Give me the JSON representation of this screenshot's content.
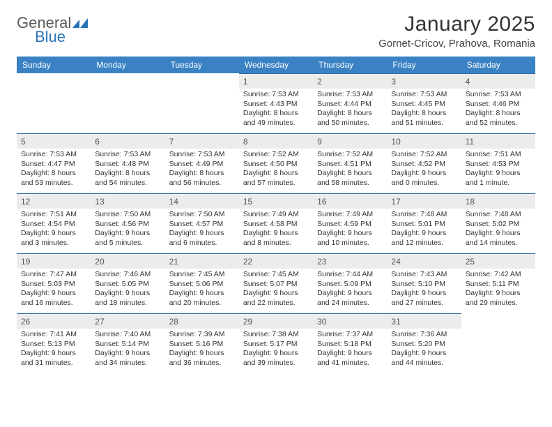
{
  "brand": {
    "word1": "General",
    "word2": "Blue",
    "mark_color": "#2a73b8",
    "text_color": "#5a5a5a"
  },
  "title": "January 2025",
  "location": "Gornet-Cricov, Prahova, Romania",
  "colors": {
    "header_bg": "#3a82c4",
    "header_text": "#ffffff",
    "daynum_bg": "#ececec",
    "daynum_border": "#2f6aa5",
    "text": "#333333"
  },
  "day_headers": [
    "Sunday",
    "Monday",
    "Tuesday",
    "Wednesday",
    "Thursday",
    "Friday",
    "Saturday"
  ],
  "weeks": [
    [
      {
        "n": "",
        "empty": true
      },
      {
        "n": "",
        "empty": true
      },
      {
        "n": "",
        "empty": true
      },
      {
        "n": "1",
        "sr": "Sunrise: 7:53 AM",
        "ss": "Sunset: 4:43 PM",
        "d1": "Daylight: 8 hours",
        "d2": "and 49 minutes."
      },
      {
        "n": "2",
        "sr": "Sunrise: 7:53 AM",
        "ss": "Sunset: 4:44 PM",
        "d1": "Daylight: 8 hours",
        "d2": "and 50 minutes."
      },
      {
        "n": "3",
        "sr": "Sunrise: 7:53 AM",
        "ss": "Sunset: 4:45 PM",
        "d1": "Daylight: 8 hours",
        "d2": "and 51 minutes."
      },
      {
        "n": "4",
        "sr": "Sunrise: 7:53 AM",
        "ss": "Sunset: 4:46 PM",
        "d1": "Daylight: 8 hours",
        "d2": "and 52 minutes."
      }
    ],
    [
      {
        "n": "5",
        "sr": "Sunrise: 7:53 AM",
        "ss": "Sunset: 4:47 PM",
        "d1": "Daylight: 8 hours",
        "d2": "and 53 minutes."
      },
      {
        "n": "6",
        "sr": "Sunrise: 7:53 AM",
        "ss": "Sunset: 4:48 PM",
        "d1": "Daylight: 8 hours",
        "d2": "and 54 minutes."
      },
      {
        "n": "7",
        "sr": "Sunrise: 7:53 AM",
        "ss": "Sunset: 4:49 PM",
        "d1": "Daylight: 8 hours",
        "d2": "and 56 minutes."
      },
      {
        "n": "8",
        "sr": "Sunrise: 7:52 AM",
        "ss": "Sunset: 4:50 PM",
        "d1": "Daylight: 8 hours",
        "d2": "and 57 minutes."
      },
      {
        "n": "9",
        "sr": "Sunrise: 7:52 AM",
        "ss": "Sunset: 4:51 PM",
        "d1": "Daylight: 8 hours",
        "d2": "and 58 minutes."
      },
      {
        "n": "10",
        "sr": "Sunrise: 7:52 AM",
        "ss": "Sunset: 4:52 PM",
        "d1": "Daylight: 9 hours",
        "d2": "and 0 minutes."
      },
      {
        "n": "11",
        "sr": "Sunrise: 7:51 AM",
        "ss": "Sunset: 4:53 PM",
        "d1": "Daylight: 9 hours",
        "d2": "and 1 minute."
      }
    ],
    [
      {
        "n": "12",
        "sr": "Sunrise: 7:51 AM",
        "ss": "Sunset: 4:54 PM",
        "d1": "Daylight: 9 hours",
        "d2": "and 3 minutes."
      },
      {
        "n": "13",
        "sr": "Sunrise: 7:50 AM",
        "ss": "Sunset: 4:56 PM",
        "d1": "Daylight: 9 hours",
        "d2": "and 5 minutes."
      },
      {
        "n": "14",
        "sr": "Sunrise: 7:50 AM",
        "ss": "Sunset: 4:57 PM",
        "d1": "Daylight: 9 hours",
        "d2": "and 6 minutes."
      },
      {
        "n": "15",
        "sr": "Sunrise: 7:49 AM",
        "ss": "Sunset: 4:58 PM",
        "d1": "Daylight: 9 hours",
        "d2": "and 8 minutes."
      },
      {
        "n": "16",
        "sr": "Sunrise: 7:49 AM",
        "ss": "Sunset: 4:59 PM",
        "d1": "Daylight: 9 hours",
        "d2": "and 10 minutes."
      },
      {
        "n": "17",
        "sr": "Sunrise: 7:48 AM",
        "ss": "Sunset: 5:01 PM",
        "d1": "Daylight: 9 hours",
        "d2": "and 12 minutes."
      },
      {
        "n": "18",
        "sr": "Sunrise: 7:48 AM",
        "ss": "Sunset: 5:02 PM",
        "d1": "Daylight: 9 hours",
        "d2": "and 14 minutes."
      }
    ],
    [
      {
        "n": "19",
        "sr": "Sunrise: 7:47 AM",
        "ss": "Sunset: 5:03 PM",
        "d1": "Daylight: 9 hours",
        "d2": "and 16 minutes."
      },
      {
        "n": "20",
        "sr": "Sunrise: 7:46 AM",
        "ss": "Sunset: 5:05 PM",
        "d1": "Daylight: 9 hours",
        "d2": "and 18 minutes."
      },
      {
        "n": "21",
        "sr": "Sunrise: 7:45 AM",
        "ss": "Sunset: 5:06 PM",
        "d1": "Daylight: 9 hours",
        "d2": "and 20 minutes."
      },
      {
        "n": "22",
        "sr": "Sunrise: 7:45 AM",
        "ss": "Sunset: 5:07 PM",
        "d1": "Daylight: 9 hours",
        "d2": "and 22 minutes."
      },
      {
        "n": "23",
        "sr": "Sunrise: 7:44 AM",
        "ss": "Sunset: 5:09 PM",
        "d1": "Daylight: 9 hours",
        "d2": "and 24 minutes."
      },
      {
        "n": "24",
        "sr": "Sunrise: 7:43 AM",
        "ss": "Sunset: 5:10 PM",
        "d1": "Daylight: 9 hours",
        "d2": "and 27 minutes."
      },
      {
        "n": "25",
        "sr": "Sunrise: 7:42 AM",
        "ss": "Sunset: 5:11 PM",
        "d1": "Daylight: 9 hours",
        "d2": "and 29 minutes."
      }
    ],
    [
      {
        "n": "26",
        "sr": "Sunrise: 7:41 AM",
        "ss": "Sunset: 5:13 PM",
        "d1": "Daylight: 9 hours",
        "d2": "and 31 minutes."
      },
      {
        "n": "27",
        "sr": "Sunrise: 7:40 AM",
        "ss": "Sunset: 5:14 PM",
        "d1": "Daylight: 9 hours",
        "d2": "and 34 minutes."
      },
      {
        "n": "28",
        "sr": "Sunrise: 7:39 AM",
        "ss": "Sunset: 5:16 PM",
        "d1": "Daylight: 9 hours",
        "d2": "and 36 minutes."
      },
      {
        "n": "29",
        "sr": "Sunrise: 7:38 AM",
        "ss": "Sunset: 5:17 PM",
        "d1": "Daylight: 9 hours",
        "d2": "and 39 minutes."
      },
      {
        "n": "30",
        "sr": "Sunrise: 7:37 AM",
        "ss": "Sunset: 5:18 PM",
        "d1": "Daylight: 9 hours",
        "d2": "and 41 minutes."
      },
      {
        "n": "31",
        "sr": "Sunrise: 7:36 AM",
        "ss": "Sunset: 5:20 PM",
        "d1": "Daylight: 9 hours",
        "d2": "and 44 minutes."
      },
      {
        "n": "",
        "empty": true
      }
    ]
  ]
}
